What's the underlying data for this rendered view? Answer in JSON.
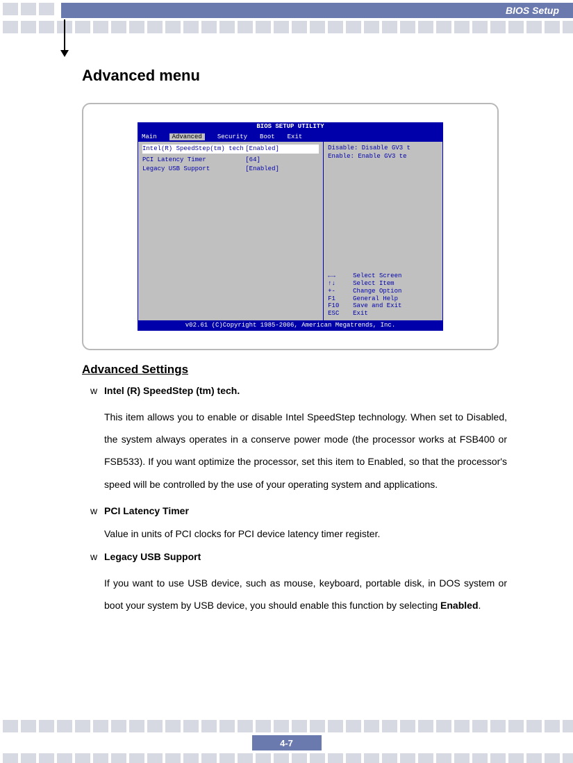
{
  "header": {
    "title": "BIOS Setup"
  },
  "page": {
    "title": "Advanced menu",
    "number": "4-7"
  },
  "bios": {
    "utility_title": "BIOS SETUP UTILITY",
    "tabs": [
      "Main",
      "Advanced",
      "Security",
      "Boot",
      "Exit"
    ],
    "active_tab_index": 1,
    "rows": [
      {
        "label": "Intel(R) SpeedStep(tm) tech",
        "value": "[Enabled]",
        "selected": true
      },
      {
        "label": "",
        "value": "",
        "selected": false
      },
      {
        "label": "PCI Latency Timer",
        "value": "[64]",
        "selected": false
      },
      {
        "label": "Legacy USB Support",
        "value": "[Enabled]",
        "selected": false
      }
    ],
    "help": {
      "line1": "Disable: Disable GV3 t",
      "line2": "Enable:  Enable GV3 te"
    },
    "nav": [
      {
        "key": "←→",
        "label": "Select Screen"
      },
      {
        "key": "↑↓",
        "label": "Select Item"
      },
      {
        "key": "+-",
        "label": "Change Option"
      },
      {
        "key": "F1",
        "label": "General Help"
      },
      {
        "key": "F10",
        "label": "Save and Exit"
      },
      {
        "key": "ESC",
        "label": "Exit"
      }
    ],
    "footer": "v02.61 (C)Copyright 1985-2006, American Megatrends, Inc."
  },
  "section": {
    "heading": "Advanced Settings",
    "bullet": "w",
    "items": [
      {
        "title": "Intel (R) SpeedStep (tm) tech.",
        "body": "This item allows you to enable or disable Intel SpeedStep technology. When set to Disabled, the system always operates in a conserve power mode (the processor works at FSB400 or FSB533).   If you want optimize the processor, set this item to Enabled, so that the processor's speed will be controlled by the use of your operating system and applications.",
        "single": false
      },
      {
        "title": "PCI Latency Timer",
        "body": "Value in units of PCI clocks for PCI device latency timer register.",
        "single": true
      },
      {
        "title": "Legacy USB Support",
        "body_html": "If you want to use USB device, such as mouse, keyboard, portable disk, in DOS system or boot your system by USB device, you should enable this function by selecting <b>Enabled</b>.",
        "single": false
      }
    ]
  },
  "colors": {
    "header_bg": "#6b7aae",
    "deco_bg": "#d7d9e2",
    "bios_blue": "#0000aa",
    "bios_gray": "#c0c0c0",
    "frame_border": "#b8b8b8"
  }
}
